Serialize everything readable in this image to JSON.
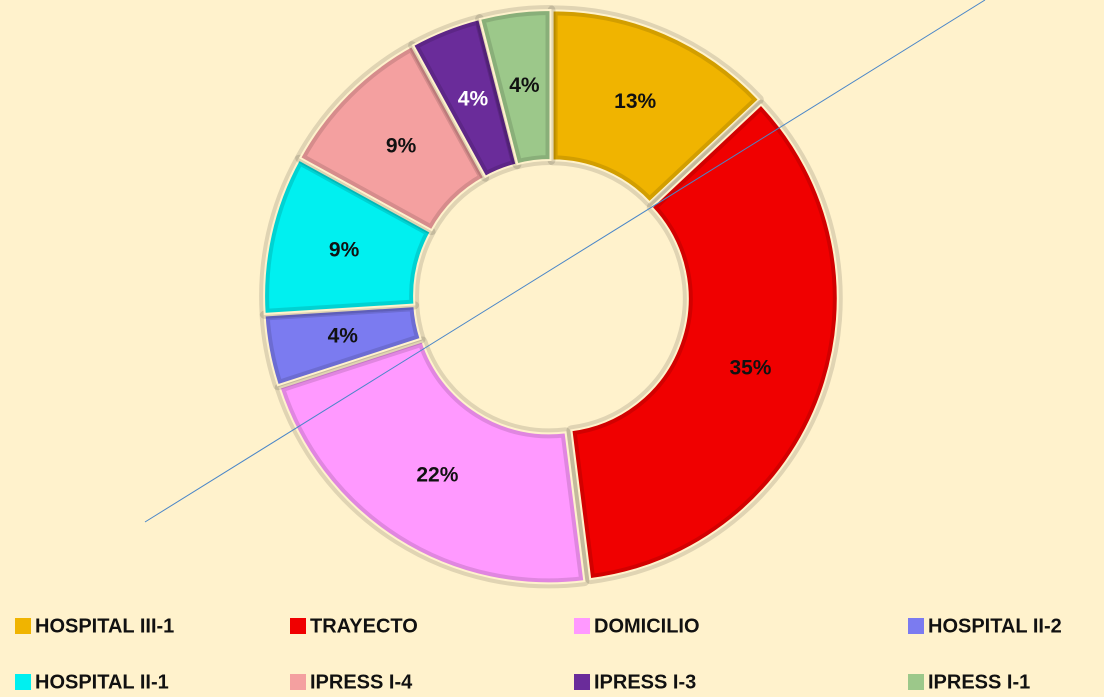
{
  "chart_data": {
    "type": "doughnut",
    "categories": [
      "HOSPITAL III-1",
      "TRAYECTO",
      "DOMICILIO",
      "HOSPITAL II-2",
      "HOSPITAL II-1",
      "IPRESS I-4",
      "IPRESS I-3",
      "IPRESS I-1"
    ],
    "values": [
      13,
      35,
      22,
      4,
      9,
      9,
      4,
      4
    ],
    "value_labels": [
      "13%",
      "35%",
      "22%",
      "4%",
      "9%",
      "9%",
      "4%",
      "4%"
    ],
    "colors": [
      "#f0b400",
      "#f00000",
      "#ff99ff",
      "#7b7bf0",
      "#00f0f0",
      "#f4a0a0",
      "#6a2c9a",
      "#9cc88a"
    ],
    "legend": "bottom"
  }
}
